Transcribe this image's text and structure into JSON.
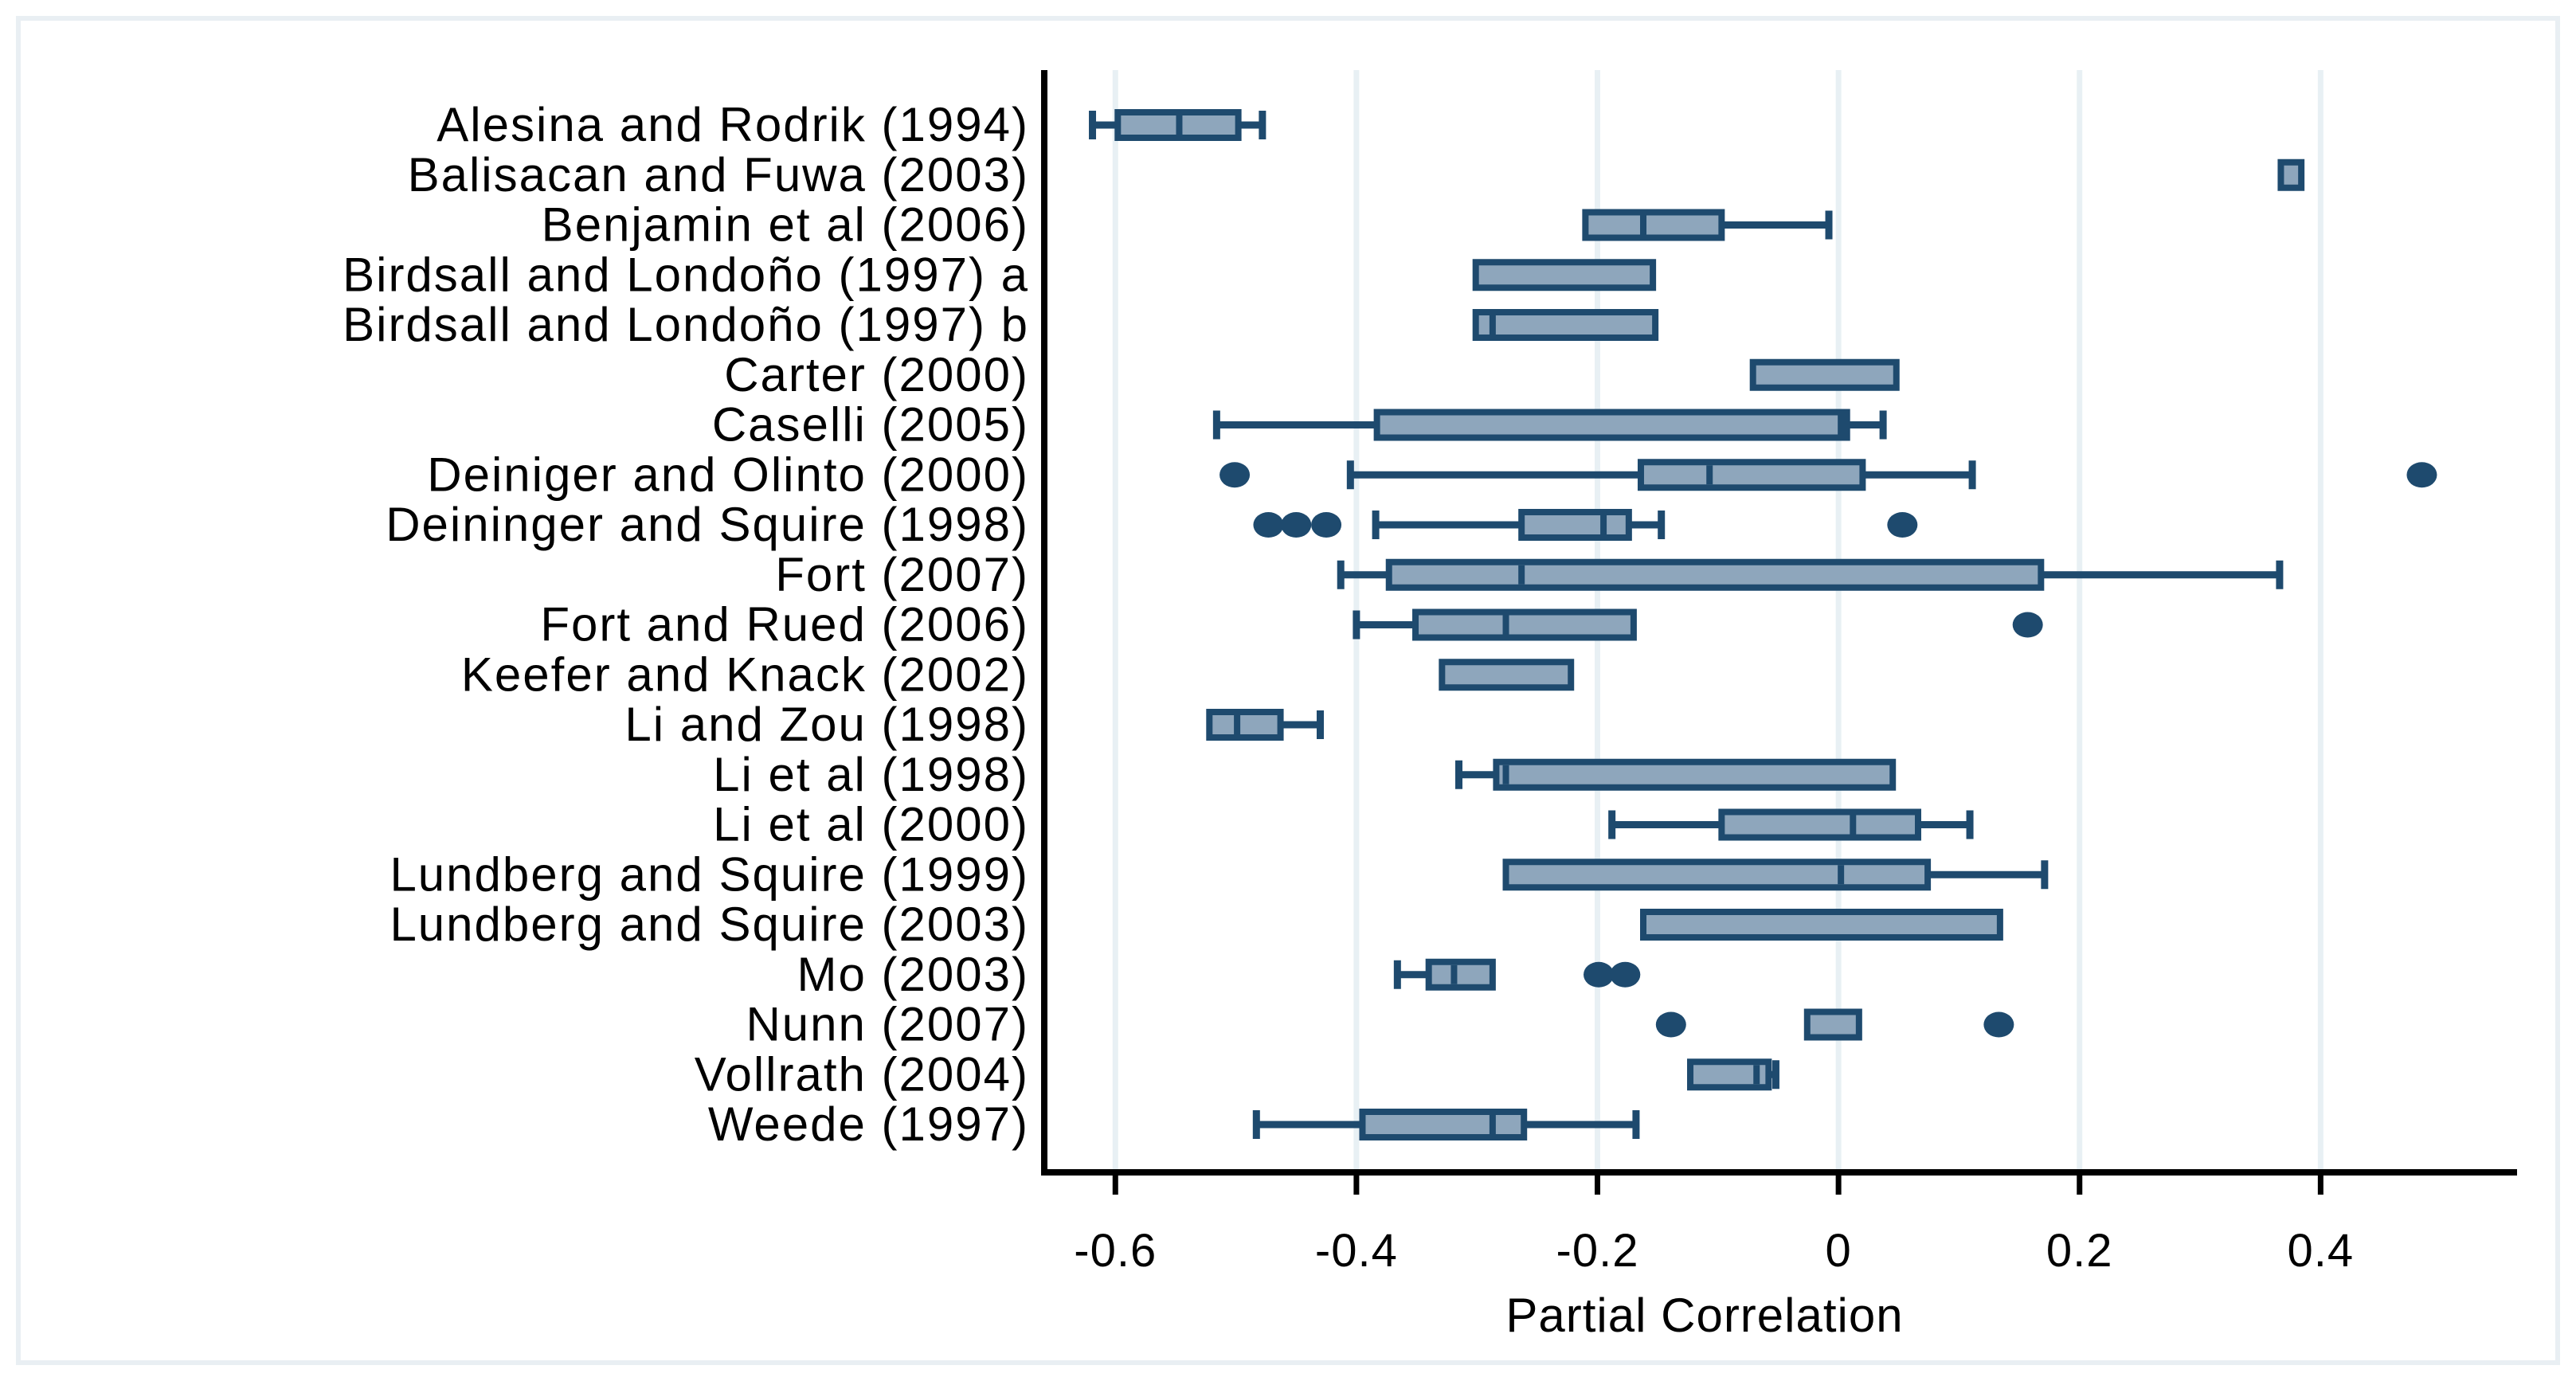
{
  "figure": {
    "background_color": "#ffffff",
    "border_color": "#e9eff3",
    "axis_color": "#000000",
    "gridline_color": "#e8f0f4",
    "box_border_color": "#1e4a6e",
    "box_fill_color": "#8ea6bc",
    "outlier_color": "#1e4a6e"
  },
  "chart_data": {
    "type": "box",
    "orientation": "horizontal",
    "title": "",
    "xlabel": "Partial Correlation",
    "ylabel": "",
    "xlim": [
      -0.659,
      0.563
    ],
    "x_ticks": [
      -0.6,
      -0.4,
      -0.2,
      0,
      0.2,
      0.4
    ],
    "x_tick_labels": [
      "-0.6",
      "-0.4",
      "-0.2",
      "0",
      "0.2",
      "0.4"
    ],
    "grid": "vertical-gridlines-on",
    "legend": "none",
    "categories": [
      "Alesina and Rodrik (1994)",
      "Balisacan and Fuwa (2003)",
      "Benjamin et al (2006)",
      "Birdsall and Londoño (1997) a",
      "Birdsall and Londoño (1997) b",
      "Carter (2000)",
      "Caselli (2005)",
      "Deiniger and Olinto (2000)",
      "Deininger and Squire (1998)",
      "Fort (2007)",
      "Fort and Rued (2006)",
      "Keefer and Knack (2002)",
      "Li and Zou (1998)",
      "Li et al (1998)",
      "Li et al (2000)",
      "Lundberg and Squire (1999)",
      "Lundberg and Squire (2003)",
      "Mo (2003)",
      "Nunn (2007)",
      "Vollrath (2004)",
      "Weede (1997)"
    ],
    "boxes": [
      {
        "lo": -0.619,
        "q1": -0.598,
        "med": -0.547,
        "q3": -0.498,
        "hi": -0.478,
        "outliers": []
      },
      {
        "lo": null,
        "q1": 0.367,
        "med": null,
        "q3": 0.384,
        "hi": null,
        "outliers": []
      },
      {
        "lo": null,
        "q1": -0.21,
        "med": -0.162,
        "q3": -0.097,
        "hi": -0.008,
        "outliers": []
      },
      {
        "lo": null,
        "q1": -0.301,
        "med": null,
        "q3": -0.154,
        "hi": null,
        "outliers": []
      },
      {
        "lo": null,
        "q1": -0.301,
        "med": -0.287,
        "q3": -0.152,
        "hi": null,
        "outliers": []
      },
      {
        "lo": null,
        "q1": -0.071,
        "med": null,
        "q3": 0.048,
        "hi": null,
        "outliers": []
      },
      {
        "lo": -0.516,
        "q1": -0.383,
        "med": 0.002,
        "q3": 0.007,
        "hi": 0.037,
        "outliers": []
      },
      {
        "lo": -0.405,
        "q1": -0.164,
        "med": -0.107,
        "q3": 0.02,
        "hi": 0.111,
        "outliers": [
          -0.501,
          0.484
        ]
      },
      {
        "lo": -0.384,
        "q1": -0.263,
        "med": -0.195,
        "q3": -0.174,
        "hi": -0.147,
        "outliers": [
          -0.473,
          -0.45,
          -0.425,
          0.053
        ]
      },
      {
        "lo": -0.413,
        "q1": -0.373,
        "med": -0.263,
        "q3": 0.168,
        "hi": 0.366,
        "outliers": []
      },
      {
        "lo": -0.4,
        "q1": -0.351,
        "med": -0.276,
        "q3": -0.17,
        "hi": null,
        "outliers": [
          0.157
        ]
      },
      {
        "lo": null,
        "q1": -0.329,
        "med": null,
        "q3": -0.222,
        "hi": null,
        "outliers": []
      },
      {
        "lo": null,
        "q1": -0.522,
        "med": -0.499,
        "q3": -0.463,
        "hi": -0.43,
        "outliers": []
      },
      {
        "lo": -0.315,
        "q1": -0.284,
        "med": -0.276,
        "q3": 0.045,
        "hi": null,
        "outliers": []
      },
      {
        "lo": -0.188,
        "q1": -0.097,
        "med": 0.012,
        "q3": 0.066,
        "hi": 0.109,
        "outliers": []
      },
      {
        "lo": null,
        "q1": -0.276,
        "med": 0.002,
        "q3": 0.074,
        "hi": 0.171,
        "outliers": []
      },
      {
        "lo": null,
        "q1": -0.162,
        "med": null,
        "q3": 0.134,
        "hi": null,
        "outliers": []
      },
      {
        "lo": -0.366,
        "q1": -0.34,
        "med": -0.319,
        "q3": -0.287,
        "hi": null,
        "outliers": [
          -0.199,
          -0.177
        ]
      },
      {
        "lo": null,
        "q1": -0.026,
        "med": null,
        "q3": 0.017,
        "hi": null,
        "outliers": [
          -0.139,
          0.133
        ]
      },
      {
        "lo": null,
        "q1": -0.123,
        "med": -0.068,
        "q3": -0.058,
        "hi": -0.052,
        "outliers": []
      },
      {
        "lo": -0.483,
        "q1": -0.395,
        "med": -0.287,
        "q3": -0.261,
        "hi": -0.168,
        "outliers": []
      }
    ]
  }
}
